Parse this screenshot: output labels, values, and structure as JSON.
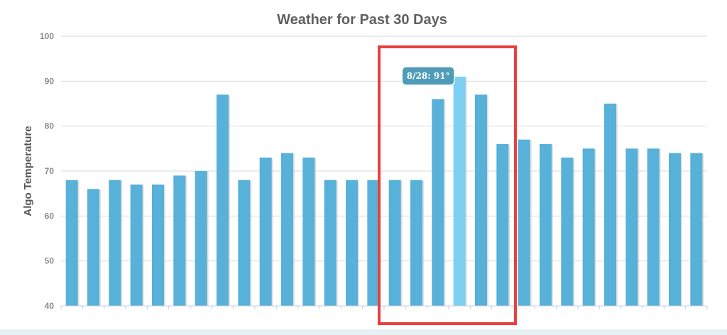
{
  "chart_data": {
    "type": "bar",
    "title": "Weather for Past 30 Days",
    "xlabel": "",
    "ylabel": "Algo Temperature",
    "ylim": [
      40,
      100
    ],
    "yticks": [
      40,
      50,
      60,
      70,
      80,
      90,
      100
    ],
    "grid": true,
    "values": [
      68,
      66,
      68,
      67,
      67,
      69,
      70,
      87,
      68,
      73,
      74,
      73,
      68,
      68,
      68,
      68,
      68,
      86,
      91,
      87,
      76,
      77,
      76,
      73,
      75,
      85,
      75,
      75,
      74,
      74
    ],
    "highlighted_index": 18,
    "tooltip": {
      "text": "8/28: 91°"
    },
    "annotation": {
      "type": "box",
      "from_index": 15,
      "to_index": 20,
      "color": "#e8403f"
    },
    "colors": {
      "bar": "#57b1d8",
      "bar_highlight": "#7dd0f2",
      "bar_shadow": "#c9c9c9",
      "grid": "#d9d9d9",
      "tooltip_bg": "#4f9cb8"
    }
  }
}
